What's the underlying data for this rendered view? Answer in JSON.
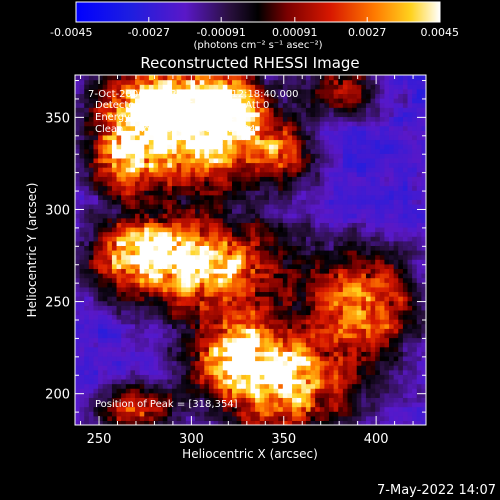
{
  "chart_data": {
    "type": "heatmap",
    "title": "Reconstructed RHESSI Image",
    "xlabel": "Heliocentric X (arcsec)",
    "ylabel": "Heliocentric Y (arcsec)",
    "xlim": [
      237,
      427
    ],
    "ylim": [
      183,
      373
    ],
    "x_ticks": [
      250,
      300,
      350,
      400
    ],
    "y_ticks": [
      200,
      250,
      300,
      350
    ],
    "colorbar": {
      "range": [
        -0.0045,
        0.0045
      ],
      "tick_values": [
        -0.0045,
        -0.0027,
        -0.00091,
        0.00091,
        0.0027,
        0.0045
      ],
      "tick_labels": [
        "-0.0045",
        "-0.0027",
        "-0.00091",
        "0.00091",
        "0.0027",
        "0.0045"
      ],
      "unit_label": "(photons cm⁻² s⁻¹ asec⁻²)"
    },
    "annotations": [
      "7-Oct-2006 12:13:44.000 to 12:18:40.000",
      "Detectors: 3F 4F 5F 6F 7F 8F, Att 0",
      "Energy Range: 6.0 - 12.0 keV",
      "Clean     Total counts: 3.97E+04"
    ],
    "peak_label": "Position of Peak = [318,354]",
    "sources": [
      {
        "x": 295,
        "y": 338,
        "flux": 0.004,
        "sx": 30,
        "sy": 22
      },
      {
        "x": 318,
        "y": 354,
        "flux": 0.0045,
        "sx": 16,
        "sy": 14
      },
      {
        "x": 280,
        "y": 360,
        "flux": 0.0034,
        "sx": 18,
        "sy": 12
      },
      {
        "x": 308,
        "y": 268,
        "flux": 0.0042,
        "sx": 34,
        "sy": 18
      },
      {
        "x": 272,
        "y": 278,
        "flux": 0.003,
        "sx": 18,
        "sy": 12
      },
      {
        "x": 350,
        "y": 205,
        "flux": 0.0045,
        "sx": 26,
        "sy": 20
      },
      {
        "x": 323,
        "y": 222,
        "flux": 0.0032,
        "sx": 18,
        "sy": 14
      },
      {
        "x": 395,
        "y": 248,
        "flux": 0.0032,
        "sx": 20,
        "sy": 22
      },
      {
        "x": 270,
        "y": 192,
        "flux": 0.0024,
        "sx": 16,
        "sy": 10
      },
      {
        "x": 262,
        "y": 330,
        "flux": 0.002,
        "sx": 12,
        "sy": 14
      },
      {
        "x": 382,
        "y": 365,
        "flux": 0.0018,
        "sx": 14,
        "sy": 10
      },
      {
        "x": 350,
        "y": 332,
        "flux": 0.0018,
        "sx": 12,
        "sy": 12
      }
    ],
    "background_range": [
      -0.0034,
      -0.0012
    ]
  },
  "timestamp": "7-May-2022 14:07"
}
